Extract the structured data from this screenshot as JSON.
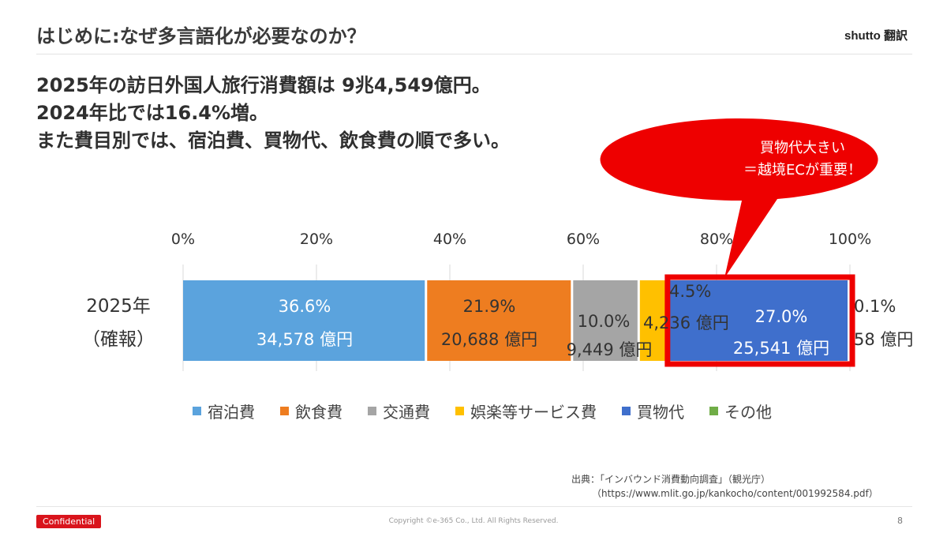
{
  "header": {
    "title": "はじめに:なぜ多言語化が必要なのか？",
    "brand": "shutto 翻訳"
  },
  "headline": {
    "line1": "2025年の訪日外国人旅行消費額は 9兆4,549億円。",
    "line2": "2024年比では16.4%増。",
    "line3": "また費目別では、宿泊費、買物代、飲食費の順で多い。"
  },
  "callout": {
    "line1": "買物代大きい",
    "line2": "＝越境ECが重要！",
    "color": "#ee0000"
  },
  "chart_data": {
    "type": "bar",
    "orientation": "horizontal-stacked-100",
    "x_ticks": [
      "0%",
      "20%",
      "40%",
      "60%",
      "80%",
      "100%"
    ],
    "xlim": [
      0,
      100
    ],
    "category": {
      "line1": "2025年",
      "line2": "（確報）"
    },
    "segments": [
      {
        "name": "宿泊費",
        "percent": 36.6,
        "percent_label": "36.6%",
        "value_label": "34,578 億円",
        "color": "#5ba3dd"
      },
      {
        "name": "飲食費",
        "percent": 21.9,
        "percent_label": "21.9%",
        "value_label": "20,688 億円",
        "color": "#ee7d20"
      },
      {
        "name": "交通費",
        "percent": 10.0,
        "percent_label": "10.0%",
        "value_label": "9,449 億円",
        "color": "#a5a5a5"
      },
      {
        "name": "娯楽等サービス費",
        "percent": 4.5,
        "percent_label": "4.5%",
        "value_label": "4,236 億円",
        "color": "#ffc000"
      },
      {
        "name": "買物代",
        "percent": 27.0,
        "percent_label": "27.0%",
        "value_label": "25,541 億円",
        "color": "#3f6fcc"
      },
      {
        "name": "その他",
        "percent": 0.1,
        "percent_label": "0.1%",
        "value_label": "58 億円",
        "color": "#70ad47"
      }
    ],
    "highlight_segment": "買物代",
    "highlight_color": "#ee0000",
    "legend_position": "bottom"
  },
  "source": {
    "line1": "出典：「インバウンド消費動向調査」（観光庁）",
    "line2": "（https://www.mlit.go.jp/kankocho/content/001992584.pdf）"
  },
  "footer": {
    "confidential": "Confidential",
    "copyright": "Copyright ©e-365 Co., Ltd. All Rights Reserved.",
    "page_number": "8"
  }
}
